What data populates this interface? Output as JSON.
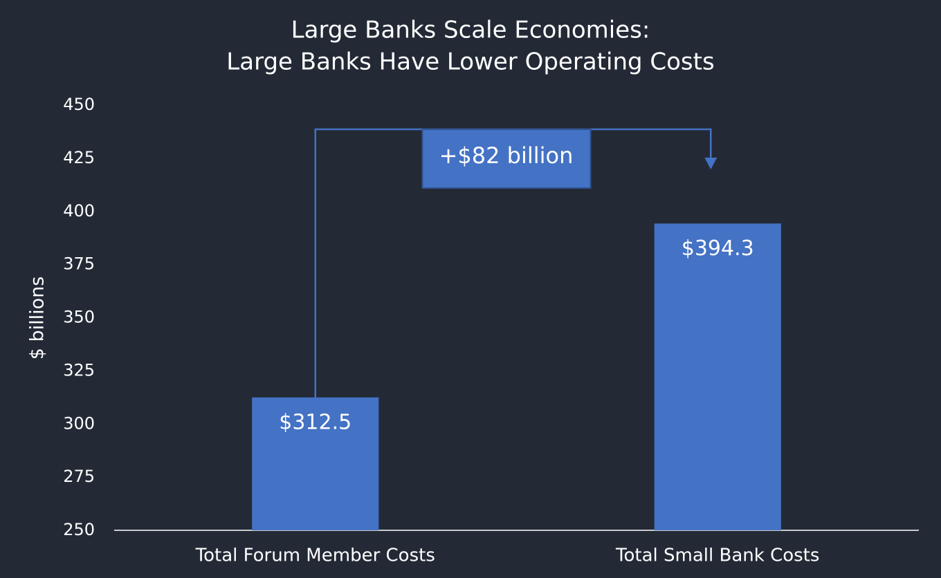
{
  "chart_data": {
    "type": "bar",
    "title": [
      "Large Banks Scale Economies:",
      "Large Banks Have Lower Operating Costs"
    ],
    "y_label": "$ billions",
    "categories": [
      "Total Forum Member Costs",
      "Total Small Bank Costs"
    ],
    "values": [
      312.5,
      394.3
    ],
    "value_labels": [
      "$312.5",
      "$394.3"
    ],
    "color": "#4472c4",
    "annotation": "+$82 billion",
    "ylim": [
      250,
      450
    ],
    "yticks": [
      250,
      275,
      300,
      325,
      350,
      375,
      400,
      425,
      450
    ],
    "grid": false
  }
}
